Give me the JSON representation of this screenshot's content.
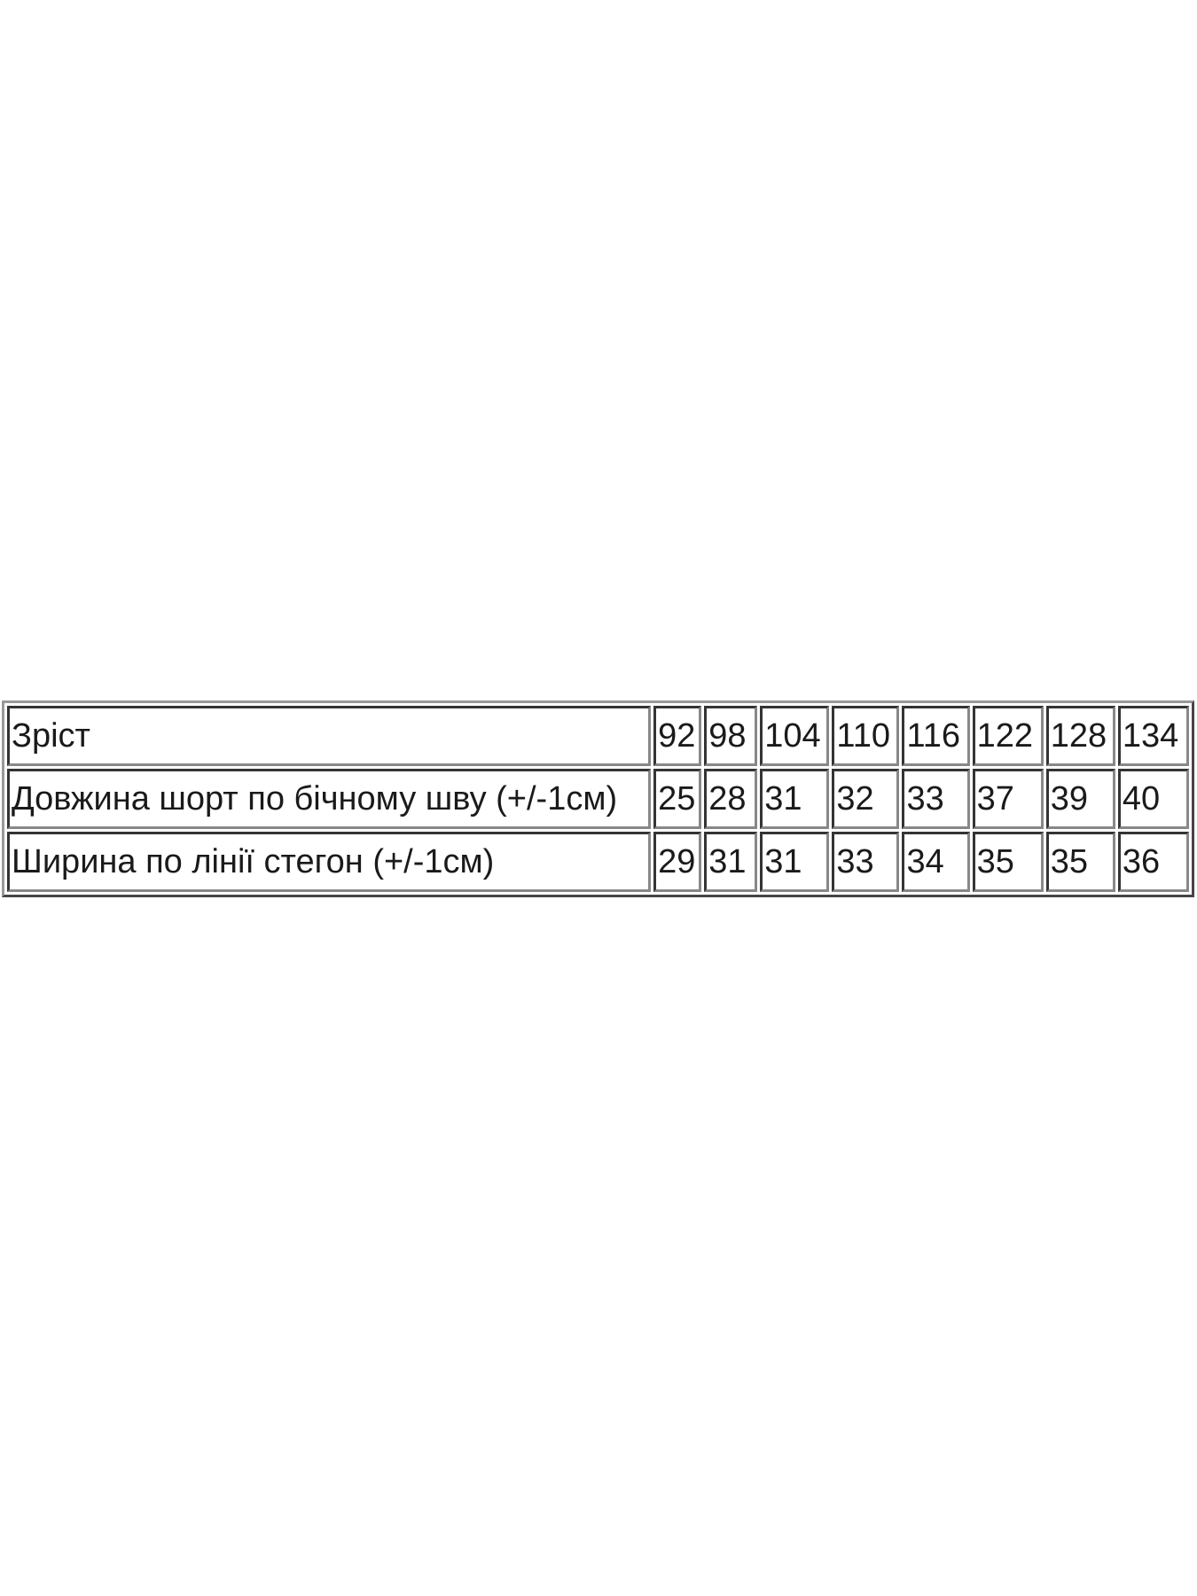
{
  "table": {
    "header": {
      "label": "Зріст",
      "values": [
        "92",
        "98",
        "104",
        "110",
        "116",
        "122",
        "128",
        "134"
      ]
    },
    "rows": [
      {
        "label": "Довжина шорт по бічному шву (+/-1см)",
        "values": [
          "25",
          "28",
          "31",
          "32",
          "33",
          "37",
          "39",
          "40"
        ]
      },
      {
        "label": "Ширина по лінії стегон (+/-1см)",
        "values": [
          "29",
          "31",
          "31",
          "33",
          "34",
          "35",
          "35",
          "36"
        ]
      }
    ]
  }
}
